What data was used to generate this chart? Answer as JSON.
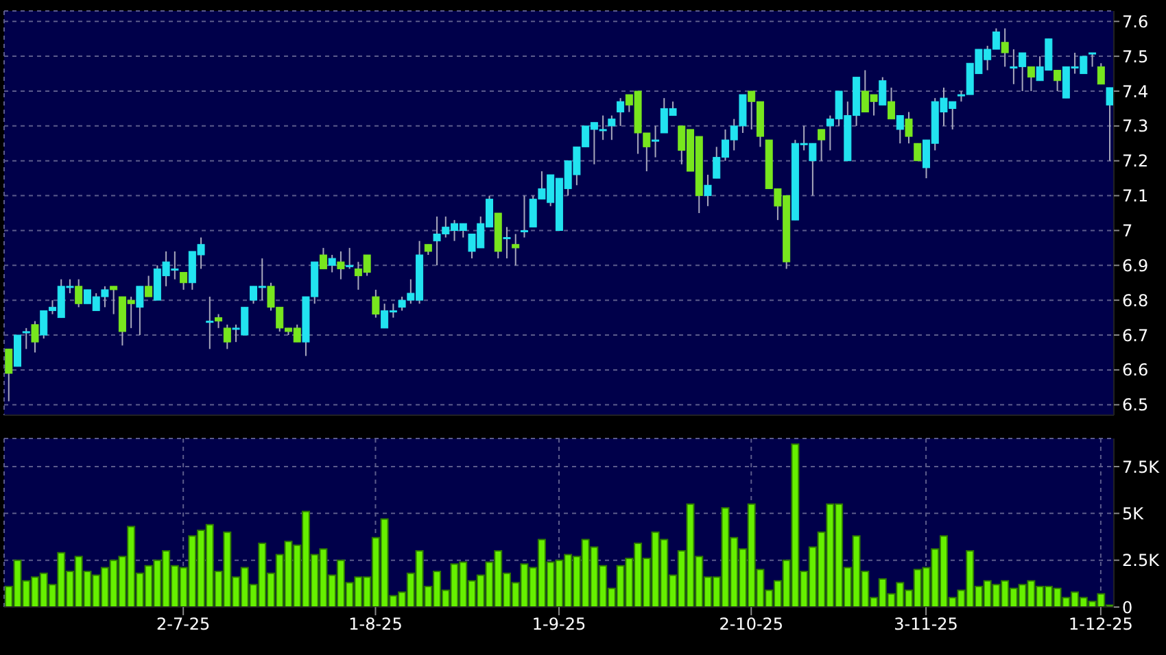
{
  "chart_data": [
    {
      "type": "candlestick",
      "categories": [
        null,
        null,
        null,
        null,
        null,
        null,
        null,
        null,
        null,
        null,
        null,
        null,
        null,
        null,
        null,
        null,
        null,
        null,
        null,
        null,
        null,
        null,
        null,
        null,
        null,
        null,
        null,
        null,
        null,
        null,
        null,
        null,
        null,
        null,
        null,
        null,
        null,
        null,
        null,
        null,
        null,
        null,
        null,
        null,
        null,
        null,
        null,
        null,
        null,
        null,
        null,
        null,
        null,
        null,
        null,
        null,
        null,
        null,
        null,
        null,
        null,
        null,
        null,
        null,
        null,
        null,
        null,
        null,
        null,
        null,
        null,
        null,
        null,
        null,
        null,
        null,
        null,
        null,
        null,
        null,
        null,
        null,
        null,
        null,
        null,
        null,
        null,
        null,
        null,
        null,
        null,
        null,
        null,
        null,
        null,
        null,
        null,
        null,
        null,
        null,
        null,
        null,
        null,
        null,
        null,
        null,
        null,
        null,
        null,
        null,
        null,
        null,
        null,
        null,
        null,
        null,
        null,
        null,
        null,
        null,
        null,
        null,
        null,
        null,
        null,
        null,
        null
      ],
      "ohlc": [
        [
          6.66,
          6.66,
          6.51,
          6.59
        ],
        [
          6.61,
          6.7,
          6.61,
          6.7
        ],
        [
          6.71,
          6.72,
          6.66,
          6.71
        ],
        [
          6.73,
          6.74,
          6.65,
          6.68
        ],
        [
          6.7,
          6.77,
          6.69,
          6.77
        ],
        [
          6.77,
          6.8,
          6.76,
          6.78
        ],
        [
          6.75,
          6.86,
          6.75,
          6.84
        ],
        [
          6.84,
          6.86,
          6.82,
          6.84
        ],
        [
          6.84,
          6.86,
          6.78,
          6.79
        ],
        [
          6.79,
          6.83,
          6.79,
          6.83
        ],
        [
          6.77,
          6.82,
          6.77,
          6.81
        ],
        [
          6.81,
          6.84,
          6.78,
          6.83
        ],
        [
          6.84,
          6.84,
          6.76,
          6.83
        ],
        [
          6.81,
          6.81,
          6.67,
          6.71
        ],
        [
          6.8,
          6.81,
          6.72,
          6.79
        ],
        [
          6.78,
          6.84,
          6.7,
          6.84
        ],
        [
          6.84,
          6.87,
          6.81,
          6.81
        ],
        [
          6.8,
          6.9,
          6.8,
          6.89
        ],
        [
          6.87,
          6.94,
          6.84,
          6.91
        ],
        [
          6.89,
          6.94,
          6.86,
          6.89
        ],
        [
          6.88,
          6.88,
          6.83,
          6.85
        ],
        [
          6.85,
          6.94,
          6.83,
          6.94
        ],
        [
          6.93,
          6.98,
          6.89,
          6.96
        ],
        [
          6.74,
          6.81,
          6.66,
          6.74
        ],
        [
          6.75,
          6.76,
          6.72,
          6.74
        ],
        [
          6.72,
          6.73,
          6.66,
          6.68
        ],
        [
          6.72,
          6.73,
          6.68,
          6.72
        ],
        [
          6.7,
          6.78,
          6.7,
          6.78
        ],
        [
          6.8,
          6.84,
          6.79,
          6.84
        ],
        [
          6.84,
          6.92,
          6.8,
          6.84
        ],
        [
          6.84,
          6.85,
          6.77,
          6.78
        ],
        [
          6.78,
          6.78,
          6.71,
          6.72
        ],
        [
          6.72,
          6.72,
          6.7,
          6.71
        ],
        [
          6.72,
          6.73,
          6.68,
          6.68
        ],
        [
          6.68,
          6.81,
          6.64,
          6.81
        ],
        [
          6.81,
          6.91,
          6.79,
          6.91
        ],
        [
          6.93,
          6.95,
          6.89,
          6.89
        ],
        [
          6.9,
          6.93,
          6.88,
          6.92
        ],
        [
          6.91,
          6.94,
          6.86,
          6.89
        ],
        [
          6.9,
          6.95,
          6.89,
          6.9
        ],
        [
          6.89,
          6.91,
          6.83,
          6.87
        ],
        [
          6.93,
          6.93,
          6.87,
          6.88
        ],
        [
          6.81,
          6.83,
          6.75,
          6.76
        ],
        [
          6.72,
          6.79,
          6.72,
          6.77
        ],
        [
          6.77,
          6.79,
          6.75,
          6.77
        ],
        [
          6.78,
          6.81,
          6.77,
          6.8
        ],
        [
          6.8,
          6.86,
          6.79,
          6.82
        ],
        [
          6.8,
          6.97,
          6.79,
          6.93
        ],
        [
          6.96,
          6.96,
          6.93,
          6.94
        ],
        [
          6.97,
          7.04,
          6.9,
          6.99
        ],
        [
          6.99,
          7.04,
          6.98,
          7.01
        ],
        [
          7.0,
          7.03,
          6.97,
          7.02
        ],
        [
          7.0,
          7.02,
          6.98,
          7.02
        ],
        [
          6.94,
          6.99,
          6.92,
          6.99
        ],
        [
          6.95,
          7.04,
          6.95,
          7.02
        ],
        [
          7.01,
          7.1,
          7.01,
          7.09
        ],
        [
          7.05,
          7.05,
          6.92,
          6.94
        ],
        [
          6.98,
          7.01,
          6.92,
          6.98
        ],
        [
          6.96,
          6.99,
          6.9,
          6.95
        ],
        [
          7.0,
          7.1,
          6.98,
          7.0
        ],
        [
          7.01,
          7.1,
          7.01,
          7.09
        ],
        [
          7.09,
          7.17,
          7.09,
          7.12
        ],
        [
          7.08,
          7.16,
          7.07,
          7.16
        ],
        [
          7.0,
          7.15,
          7.0,
          7.15
        ],
        [
          7.12,
          7.2,
          7.1,
          7.2
        ],
        [
          7.16,
          7.24,
          7.13,
          7.24
        ],
        [
          7.24,
          7.3,
          7.24,
          7.3
        ],
        [
          7.29,
          7.31,
          7.19,
          7.31
        ],
        [
          7.29,
          7.33,
          7.26,
          7.29
        ],
        [
          7.3,
          7.33,
          7.26,
          7.32
        ],
        [
          7.34,
          7.38,
          7.3,
          7.37
        ],
        [
          7.39,
          7.39,
          7.34,
          7.36
        ],
        [
          7.4,
          7.4,
          7.22,
          7.28
        ],
        [
          7.28,
          7.28,
          7.17,
          7.24
        ],
        [
          7.26,
          7.3,
          7.21,
          7.26
        ],
        [
          7.28,
          7.38,
          7.28,
          7.35
        ],
        [
          7.33,
          7.37,
          7.33,
          7.35
        ],
        [
          7.3,
          7.3,
          7.19,
          7.23
        ],
        [
          7.29,
          7.29,
          7.17,
          7.17
        ],
        [
          7.27,
          7.27,
          7.05,
          7.1
        ],
        [
          7.1,
          7.16,
          7.07,
          7.13
        ],
        [
          7.15,
          7.24,
          7.15,
          7.21
        ],
        [
          7.21,
          7.29,
          7.2,
          7.26
        ],
        [
          7.26,
          7.32,
          7.23,
          7.3
        ],
        [
          7.3,
          7.39,
          7.28,
          7.39
        ],
        [
          7.4,
          7.4,
          7.29,
          7.37
        ],
        [
          7.37,
          7.37,
          7.24,
          7.27
        ],
        [
          7.26,
          7.26,
          7.12,
          7.12
        ],
        [
          7.12,
          7.12,
          7.03,
          7.07
        ],
        [
          7.1,
          7.1,
          6.89,
          6.91
        ],
        [
          7.03,
          7.26,
          7.03,
          7.25
        ],
        [
          7.25,
          7.3,
          7.23,
          7.25
        ],
        [
          7.2,
          7.25,
          7.1,
          7.25
        ],
        [
          7.29,
          7.29,
          7.2,
          7.26
        ],
        [
          7.3,
          7.33,
          7.23,
          7.32
        ],
        [
          7.32,
          7.4,
          7.3,
          7.4
        ],
        [
          7.2,
          7.37,
          7.2,
          7.33
        ],
        [
          7.33,
          7.44,
          7.3,
          7.44
        ],
        [
          7.4,
          7.46,
          7.34,
          7.34
        ],
        [
          7.39,
          7.39,
          7.33,
          7.37
        ],
        [
          7.36,
          7.44,
          7.36,
          7.43
        ],
        [
          7.37,
          7.41,
          7.32,
          7.32
        ],
        [
          7.29,
          7.33,
          7.25,
          7.33
        ],
        [
          7.32,
          7.34,
          7.25,
          7.27
        ],
        [
          7.25,
          7.25,
          7.2,
          7.2
        ],
        [
          7.18,
          7.26,
          7.15,
          7.26
        ],
        [
          7.25,
          7.38,
          7.23,
          7.37
        ],
        [
          7.34,
          7.41,
          7.3,
          7.38
        ],
        [
          7.35,
          7.37,
          7.29,
          7.37
        ],
        [
          7.39,
          7.4,
          7.37,
          7.39
        ],
        [
          7.39,
          7.48,
          7.39,
          7.48
        ],
        [
          7.45,
          7.52,
          7.45,
          7.52
        ],
        [
          7.49,
          7.53,
          7.46,
          7.52
        ],
        [
          7.52,
          7.58,
          7.52,
          7.57
        ],
        [
          7.54,
          7.58,
          7.47,
          7.51
        ],
        [
          7.47,
          7.52,
          7.42,
          7.47
        ],
        [
          7.47,
          7.51,
          7.4,
          7.51
        ],
        [
          7.47,
          7.47,
          7.4,
          7.44
        ],
        [
          7.43,
          7.5,
          7.43,
          7.47
        ],
        [
          7.46,
          7.55,
          7.46,
          7.55
        ],
        [
          7.46,
          7.46,
          7.4,
          7.43
        ],
        [
          7.38,
          7.47,
          7.38,
          7.47
        ],
        [
          7.47,
          7.51,
          7.45,
          7.47
        ],
        [
          7.45,
          7.5,
          7.45,
          7.5
        ],
        [
          7.51,
          7.51,
          7.47,
          7.51
        ],
        [
          7.47,
          7.48,
          7.42,
          7.42
        ],
        [
          7.36,
          7.41,
          7.2,
          7.41
        ]
      ],
      "colors": [
        "#78e61e",
        "#22e3f0",
        "#22e3f0",
        "#78e61e",
        "#22e3f0",
        "#22e3f0",
        "#22e3f0",
        "#22e3f0",
        "#78e61e",
        "#22e3f0",
        "#22e3f0",
        "#22e3f0",
        "#78e61e",
        "#78e61e",
        "#78e61e",
        "#22e3f0",
        "#78e61e",
        "#22e3f0",
        "#22e3f0",
        "#22e3f0",
        "#78e61e",
        "#22e3f0",
        "#22e3f0",
        "#22e3f0",
        "#78e61e",
        "#78e61e",
        "#22e3f0",
        "#22e3f0",
        "#22e3f0",
        "#22e3f0",
        "#78e61e",
        "#78e61e",
        "#78e61e",
        "#78e61e",
        "#22e3f0",
        "#22e3f0",
        "#78e61e",
        "#22e3f0",
        "#78e61e",
        "#22e3f0",
        "#78e61e",
        "#78e61e",
        "#78e61e",
        "#22e3f0",
        "#22e3f0",
        "#22e3f0",
        "#22e3f0",
        "#22e3f0",
        "#78e61e",
        "#22e3f0",
        "#22e3f0",
        "#22e3f0",
        "#22e3f0",
        "#22e3f0",
        "#22e3f0",
        "#22e3f0",
        "#78e61e",
        "#22e3f0",
        "#78e61e",
        "#22e3f0",
        "#22e3f0",
        "#22e3f0",
        "#22e3f0",
        "#22e3f0",
        "#22e3f0",
        "#22e3f0",
        "#22e3f0",
        "#22e3f0",
        "#22e3f0",
        "#22e3f0",
        "#22e3f0",
        "#78e61e",
        "#78e61e",
        "#78e61e",
        "#22e3f0",
        "#22e3f0",
        "#22e3f0",
        "#78e61e",
        "#78e61e",
        "#78e61e",
        "#22e3f0",
        "#22e3f0",
        "#22e3f0",
        "#22e3f0",
        "#22e3f0",
        "#78e61e",
        "#78e61e",
        "#78e61e",
        "#78e61e",
        "#78e61e",
        "#22e3f0",
        "#22e3f0",
        "#22e3f0",
        "#78e61e",
        "#22e3f0",
        "#22e3f0",
        "#22e3f0",
        "#22e3f0",
        "#78e61e",
        "#78e61e",
        "#22e3f0",
        "#78e61e",
        "#22e3f0",
        "#78e61e",
        "#78e61e",
        "#22e3f0",
        "#22e3f0",
        "#22e3f0",
        "#22e3f0",
        "#22e3f0",
        "#22e3f0",
        "#22e3f0",
        "#22e3f0",
        "#22e3f0",
        "#78e61e",
        "#22e3f0",
        "#22e3f0",
        "#78e61e",
        "#22e3f0",
        "#22e3f0",
        "#78e61e",
        "#22e3f0",
        "#22e3f0",
        "#22e3f0",
        "#22e3f0",
        "#78e61e",
        "#22e3f0"
      ],
      "ylim": [
        6.47,
        7.63
      ],
      "yticks": [
        6.5,
        6.6,
        6.7,
        6.8,
        6.9,
        7,
        7.1,
        7.2,
        7.3,
        7.4,
        7.5,
        7.6
      ],
      "grid": true,
      "tick_labels": "y"
    },
    {
      "type": "bar",
      "categories": [
        null,
        null,
        null,
        null,
        null,
        null,
        null,
        null,
        null,
        null,
        null,
        null,
        null,
        null,
        null,
        null,
        null,
        null,
        null,
        null,
        "2-7-25",
        null,
        null,
        null,
        null,
        null,
        null,
        null,
        null,
        null,
        null,
        null,
        null,
        null,
        null,
        null,
        null,
        null,
        null,
        null,
        null,
        null,
        "1-8-25",
        null,
        null,
        null,
        null,
        null,
        null,
        null,
        null,
        null,
        null,
        null,
        null,
        null,
        null,
        null,
        null,
        null,
        null,
        null,
        null,
        "1-9-25",
        null,
        null,
        null,
        null,
        null,
        null,
        null,
        null,
        null,
        null,
        null,
        null,
        null,
        null,
        null,
        null,
        null,
        null,
        null,
        null,
        null,
        "2-10-25",
        null,
        null,
        null,
        null,
        null,
        null,
        null,
        null,
        null,
        null,
        null,
        null,
        null,
        null,
        null,
        null,
        null,
        null,
        null,
        "3-11-25",
        null,
        null,
        null,
        null,
        null,
        null,
        null,
        null,
        null,
        null,
        null,
        null,
        null,
        null,
        null,
        null,
        null,
        null,
        null,
        "1-12-25",
        null
      ],
      "values": [
        1100,
        2500,
        1400,
        1600,
        1800,
        1200,
        2900,
        1900,
        2700,
        1900,
        1700,
        2100,
        2500,
        2700,
        4300,
        1800,
        2200,
        2500,
        3000,
        2200,
        2100,
        3800,
        4100,
        4400,
        1900,
        4000,
        1600,
        2100,
        1200,
        3400,
        1800,
        2800,
        3500,
        3300,
        5100,
        2800,
        3100,
        1700,
        2500,
        1300,
        1600,
        1600,
        3700,
        4700,
        600,
        800,
        1800,
        3000,
        1100,
        1900,
        900,
        2300,
        2400,
        1400,
        1700,
        2400,
        3000,
        1800,
        1300,
        2300,
        2100,
        3600,
        2400,
        2500,
        2800,
        2700,
        3600,
        3200,
        2200,
        1000,
        2200,
        2600,
        3400,
        2600,
        4000,
        3600,
        1700,
        3000,
        5500,
        2700,
        1600,
        1600,
        5300,
        3700,
        3100,
        5500,
        2000,
        900,
        1400,
        2500,
        8700,
        1900,
        3200,
        4000,
        5500,
        5500,
        2100,
        3800,
        1900,
        500,
        1500,
        700,
        1300,
        900,
        2000,
        2100,
        3100,
        3800,
        500,
        900,
        3000,
        1100,
        1400,
        1200,
        1400,
        1000,
        1200,
        1400,
        1100,
        1100,
        1000,
        500,
        800,
        500,
        300,
        700,
        100
      ],
      "color": "#66f000",
      "ylim": [
        0,
        9000
      ],
      "yticks": [
        0,
        {
          "value": 2500,
          "label": "2.5K"
        },
        {
          "value": 5000,
          "label": "5K"
        },
        {
          "value": 7500,
          "label": "7.5K"
        }
      ],
      "grid": true
    }
  ]
}
